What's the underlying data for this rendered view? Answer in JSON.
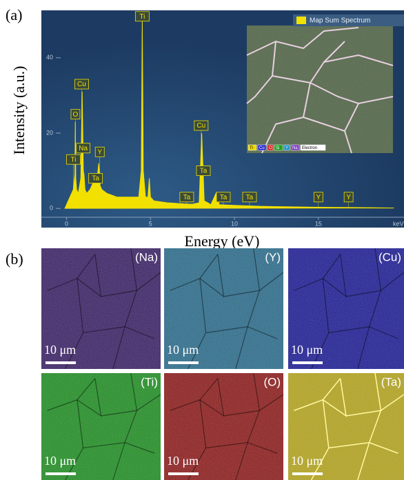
{
  "panel_labels": [
    "(a)",
    "(b)"
  ],
  "chart_data": {
    "type": "area",
    "xlabel": "Energy (eV)",
    "ylabel": "Intensity (a.u.)",
    "x_unit": "keV",
    "legend": "Map Sum Spectrum",
    "color": "#f2e000",
    "xlim": [
      -1.5,
      20.1
    ],
    "ylim": [
      -5.1,
      52.6
    ],
    "xticks": [
      0,
      5,
      10,
      15
    ],
    "yticks": [
      0,
      20,
      40
    ],
    "x": [
      -0.1,
      0.1,
      0.3,
      0.4,
      0.45,
      0.5,
      0.52,
      0.55,
      0.6,
      0.7,
      0.85,
      0.93,
      1.0,
      1.04,
      1.1,
      1.2,
      1.4,
      1.6,
      1.71,
      1.8,
      1.92,
      2.0,
      2.1,
      2.4,
      3,
      3.5,
      4,
      4.3,
      4.45,
      4.51,
      4.57,
      4.7,
      4.85,
      4.93,
      5.0,
      5.2,
      6,
      7,
      7.5,
      7.9,
      8.05,
      8.2,
      8.6,
      8.9,
      9.1,
      10,
      12,
      15,
      18,
      19.5
    ],
    "values": [
      0,
      2,
      4,
      5,
      7,
      9,
      23,
      8,
      5,
      4,
      8,
      31,
      10,
      9,
      5,
      4,
      5,
      7,
      8,
      7,
      12,
      6,
      5,
      4,
      3,
      3,
      3,
      3,
      10,
      50,
      10,
      3,
      3,
      8,
      3,
      2,
      1.5,
      1.2,
      1.1,
      1.5,
      20,
      2,
      1,
      4,
      1,
      0.8,
      0.5,
      0.3,
      0.2,
      0.1
    ],
    "peak_labels": [
      {
        "label": "Ti",
        "x": 4.51,
        "y": 51
      },
      {
        "label": "Cu",
        "x": 0.9,
        "y": 33
      },
      {
        "label": "O",
        "x": 0.53,
        "y": 25
      },
      {
        "label": "Na",
        "x": 0.99,
        "y": 16
      },
      {
        "label": "Y",
        "x": 1.98,
        "y": 15
      },
      {
        "label": "Ti",
        "x": 0.41,
        "y": 13
      },
      {
        "label": "Ta",
        "x": 1.73,
        "y": 8
      },
      {
        "label": "Cu",
        "x": 8.02,
        "y": 22
      },
      {
        "label": "Ta",
        "x": 8.15,
        "y": 10
      },
      {
        "label": "Ta",
        "x": 7.16,
        "y": 3
      },
      {
        "label": "Ta",
        "x": 9.34,
        "y": 3
      },
      {
        "label": "Ta",
        "x": 10.9,
        "y": 3
      },
      {
        "label": "Y",
        "x": 15.0,
        "y": 3
      },
      {
        "label": "Y",
        "x": 16.8,
        "y": 3
      }
    ],
    "inset_legend": [
      {
        "label": "Ti",
        "color": "#e8d800"
      },
      {
        "label": "Cu",
        "color": "#2a2ad0"
      },
      {
        "label": "O",
        "color": "#d02020"
      },
      {
        "label": "Si",
        "color": "#20a020"
      },
      {
        "label": "Y",
        "color": "#2090c0"
      },
      {
        "label": "Na",
        "color": "#7a3ac0"
      },
      {
        "label": "Electron",
        "color": "#ffffff"
      }
    ]
  },
  "maps": [
    {
      "label": "(Na)",
      "color": "#3a2066",
      "scale_bar": "10 μm"
    },
    {
      "label": "(Y)",
      "color": "#2a6c8c",
      "scale_bar": "10 μm"
    },
    {
      "label": "(Cu)",
      "color": "#1c1c96",
      "scale_bar": "10 μm"
    },
    {
      "label": "(Ti)",
      "color": "#1f8f22",
      "scale_bar": "10 μm"
    },
    {
      "label": "(O)",
      "color": "#8e1a1a",
      "scale_bar": "10 μm"
    },
    {
      "label": "(Ta)",
      "color": "#b5a51c",
      "scale_bar": "10 μm"
    }
  ]
}
